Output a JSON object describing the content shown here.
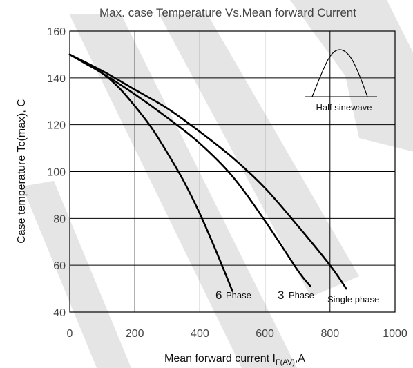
{
  "chart_data": {
    "type": "line",
    "title": "Max. case Temperature Vs.Mean forward Current",
    "xlabel": "Mean forward current I",
    "xlabel_sub": "F(AV)",
    "xlabel_unit": ",A",
    "ylabel": "Case temperature Tc(max), C",
    "xlim": [
      0,
      1000
    ],
    "ylim": [
      40,
      160
    ],
    "xticks": [
      0,
      200,
      400,
      600,
      800,
      1000
    ],
    "yticks": [
      40,
      60,
      80,
      100,
      120,
      140,
      160
    ],
    "xtick_labels": [
      "0",
      "200",
      "400",
      "600",
      "800",
      "1000"
    ],
    "ytick_labels": [
      "40",
      "60",
      "80",
      "100",
      "120",
      "140",
      "160"
    ],
    "grid": true,
    "series": [
      {
        "name": "6 Phase",
        "label_number": "6",
        "label_word": "Phase",
        "x": [
          0,
          50,
          100,
          150,
          200,
          250,
          300,
          350,
          400,
          450,
          500
        ],
        "y": [
          150,
          146,
          142,
          136,
          128,
          119,
          108,
          96,
          82,
          66,
          49
        ]
      },
      {
        "name": "3 Phase",
        "label_number": "3",
        "label_word": "Phase",
        "x": [
          0,
          100,
          200,
          300,
          400,
          500,
          600,
          700,
          740
        ],
        "y": [
          150,
          142,
          133,
          123,
          112,
          98,
          79,
          58,
          51
        ]
      },
      {
        "name": "Single phase",
        "label_number": "",
        "label_word": "Single phase",
        "x": [
          0,
          100,
          200,
          300,
          400,
          500,
          600,
          700,
          800,
          850
        ],
        "y": [
          150,
          143,
          135,
          127,
          117,
          106,
          93,
          77,
          60,
          50
        ]
      }
    ],
    "inset": {
      "label": "Half sinewave",
      "icon": "half-sinewave-icon"
    }
  }
}
